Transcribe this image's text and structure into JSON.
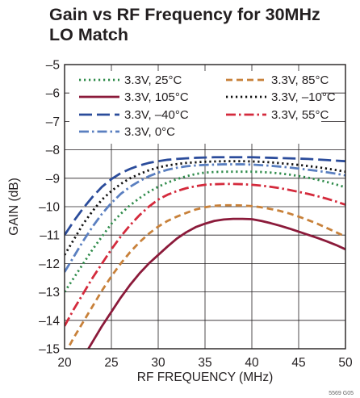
{
  "chart_data": {
    "type": "line",
    "title_line1": "Gain vs RF Frequency for 30MHz",
    "title_line2": "LO Match",
    "xlabel": "RF FREQUENCY (MHz)",
    "ylabel": "GAIN (dB)",
    "xlim": [
      20,
      50
    ],
    "ylim": [
      -15,
      -5
    ],
    "xticks": [
      20,
      25,
      30,
      35,
      40,
      45,
      50
    ],
    "yticks": [
      -15,
      -14,
      -13,
      -12,
      -11,
      -10,
      -9,
      -8,
      -7,
      -6,
      -5
    ],
    "grid": true,
    "legend_placement": "top",
    "footer_id": "5569 G05",
    "series": [
      {
        "name": "3.3V, 25°C",
        "color": "#2e8b4a",
        "dash": "dotted",
        "x": [
          20,
          21,
          22,
          23,
          24,
          25,
          26,
          27,
          28,
          29,
          30,
          31,
          32,
          33,
          34,
          35,
          36,
          37,
          38,
          39,
          40,
          41,
          42,
          43,
          44,
          45,
          46,
          47,
          48,
          49,
          50
        ],
        "y": [
          -13.0,
          -12.5,
          -12.0,
          -11.5,
          -11.05,
          -10.6,
          -10.25,
          -9.95,
          -9.7,
          -9.48,
          -9.3,
          -9.15,
          -9.03,
          -8.93,
          -8.85,
          -8.8,
          -8.78,
          -8.77,
          -8.77,
          -8.77,
          -8.77,
          -8.78,
          -8.8,
          -8.83,
          -8.87,
          -8.92,
          -8.98,
          -9.05,
          -9.13,
          -9.22,
          -9.32
        ]
      },
      {
        "name": "3.3V, 85°C",
        "color": "#c8813a",
        "dash": "dashed",
        "x": [
          20,
          21,
          22,
          23,
          24,
          25,
          26,
          27,
          28,
          29,
          30,
          31,
          32,
          33,
          34,
          35,
          36,
          37,
          38,
          39,
          40,
          41,
          42,
          43,
          44,
          45,
          46,
          47,
          48,
          49,
          50
        ],
        "y": [
          -15.2,
          -14.6,
          -14.05,
          -13.5,
          -12.95,
          -12.45,
          -12.0,
          -11.6,
          -11.25,
          -10.95,
          -10.7,
          -10.5,
          -10.35,
          -10.22,
          -10.1,
          -10.02,
          -9.97,
          -9.95,
          -9.95,
          -9.96,
          -9.98,
          -10.02,
          -10.08,
          -10.15,
          -10.24,
          -10.35,
          -10.47,
          -10.6,
          -10.75,
          -10.9,
          -11.05
        ]
      },
      {
        "name": "3.3V, 105°C",
        "color": "#8b1a3a",
        "dash": "solid",
        "x": [
          22,
          23,
          24,
          25,
          26,
          27,
          28,
          29,
          30,
          31,
          32,
          33,
          34,
          35,
          36,
          37,
          38,
          39,
          40,
          41,
          42,
          43,
          44,
          45,
          46,
          47,
          48,
          49,
          50
        ],
        "y": [
          -15.3,
          -14.75,
          -14.2,
          -13.7,
          -13.2,
          -12.75,
          -12.35,
          -12.0,
          -11.7,
          -11.4,
          -11.12,
          -10.9,
          -10.72,
          -10.6,
          -10.5,
          -10.45,
          -10.43,
          -10.43,
          -10.44,
          -10.5,
          -10.58,
          -10.67,
          -10.77,
          -10.88,
          -10.99,
          -11.1,
          -11.22,
          -11.35,
          -11.5
        ]
      },
      {
        "name": "3.3V, –10°C",
        "color": "#111111",
        "dash": "dotted",
        "x": [
          20,
          21,
          22,
          23,
          24,
          25,
          26,
          27,
          28,
          29,
          30,
          31,
          32,
          33,
          34,
          35,
          36,
          37,
          38,
          39,
          40,
          41,
          42,
          43,
          44,
          45,
          46,
          47,
          48,
          49,
          50
        ],
        "y": [
          -11.7,
          -11.15,
          -10.6,
          -10.15,
          -9.75,
          -9.45,
          -9.2,
          -9.0,
          -8.85,
          -8.72,
          -8.62,
          -8.55,
          -8.5,
          -8.46,
          -8.44,
          -8.42,
          -8.41,
          -8.4,
          -8.4,
          -8.4,
          -8.41,
          -8.42,
          -8.44,
          -8.47,
          -8.5,
          -8.53,
          -8.57,
          -8.61,
          -8.66,
          -8.71,
          -8.77
        ]
      },
      {
        "name": "3.3V, –40°C",
        "color": "#2b4c9b",
        "dash": "longdash",
        "x": [
          20,
          21,
          22,
          23,
          24,
          25,
          26,
          27,
          28,
          29,
          30,
          31,
          32,
          33,
          34,
          35,
          36,
          37,
          38,
          39,
          40,
          41,
          42,
          43,
          44,
          45,
          46,
          47,
          48,
          49,
          50
        ],
        "y": [
          -11.0,
          -10.5,
          -10.05,
          -9.65,
          -9.3,
          -9.03,
          -8.82,
          -8.67,
          -8.55,
          -8.46,
          -8.4,
          -8.35,
          -8.32,
          -8.3,
          -8.28,
          -8.27,
          -8.26,
          -8.26,
          -8.26,
          -8.26,
          -8.26,
          -8.27,
          -8.28,
          -8.29,
          -8.3,
          -8.31,
          -8.32,
          -8.34,
          -8.36,
          -8.38,
          -8.4
        ]
      },
      {
        "name": "3.3V, 55°C",
        "color": "#d42a3c",
        "dash": "dashdot",
        "x": [
          20,
          21,
          22,
          23,
          24,
          25,
          26,
          27,
          28,
          29,
          30,
          31,
          32,
          33,
          34,
          35,
          36,
          37,
          38,
          39,
          40,
          41,
          42,
          43,
          44,
          45,
          46,
          47,
          48,
          49,
          50
        ],
        "y": [
          -14.2,
          -13.6,
          -13.05,
          -12.5,
          -12.0,
          -11.5,
          -11.05,
          -10.65,
          -10.3,
          -10.0,
          -9.75,
          -9.58,
          -9.45,
          -9.35,
          -9.28,
          -9.23,
          -9.21,
          -9.2,
          -9.2,
          -9.21,
          -9.23,
          -9.26,
          -9.3,
          -9.35,
          -9.41,
          -9.48,
          -9.55,
          -9.63,
          -9.72,
          -9.82,
          -9.93
        ]
      },
      {
        "name": "3.3V, 0°C",
        "color": "#5a7fc0",
        "dash": "dashdot",
        "x": [
          20,
          21,
          22,
          23,
          24,
          25,
          26,
          27,
          28,
          29,
          30,
          31,
          32,
          33,
          34,
          35,
          36,
          37,
          38,
          39,
          40,
          41,
          42,
          43,
          44,
          45,
          46,
          47,
          48,
          49,
          50
        ],
        "y": [
          -12.3,
          -11.75,
          -11.2,
          -10.7,
          -10.25,
          -9.87,
          -9.55,
          -9.3,
          -9.1,
          -8.93,
          -8.8,
          -8.7,
          -8.63,
          -8.58,
          -8.55,
          -8.53,
          -8.52,
          -8.51,
          -8.51,
          -8.51,
          -8.52,
          -8.54,
          -8.56,
          -8.59,
          -8.62,
          -8.66,
          -8.7,
          -8.74,
          -8.79,
          -8.84,
          -8.9
        ]
      }
    ]
  }
}
